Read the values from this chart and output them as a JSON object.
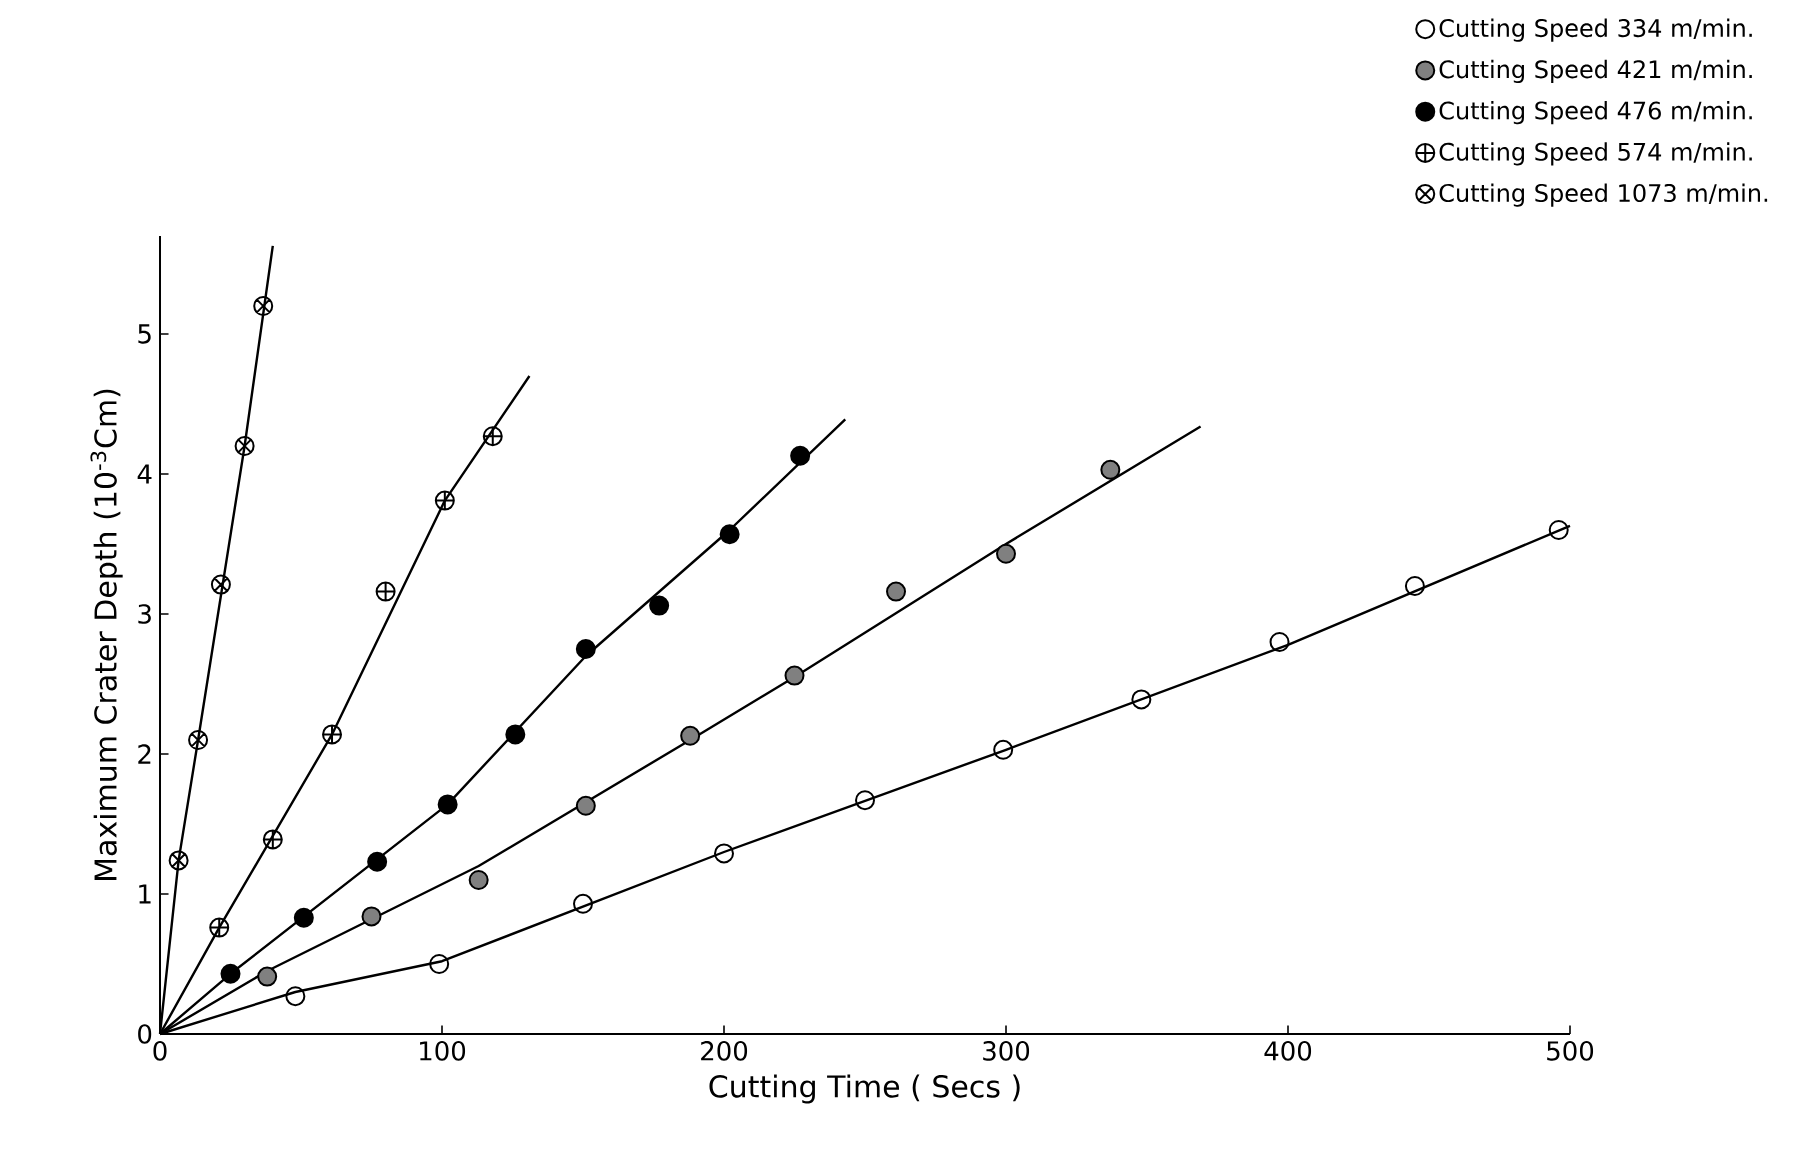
{
  "chart_data": {
    "type": "scatter",
    "xlabel": "Cutting Time ( Secs )",
    "ylabel": "Maximum Crater Depth (10$^{-3}$Cm)",
    "xlim": [
      0,
      500
    ],
    "ylim": [
      0,
      5.7
    ],
    "xticks": [
      0,
      100,
      200,
      300,
      400,
      500
    ],
    "yticks": [
      0,
      1,
      2,
      3,
      4,
      5
    ],
    "legend": "top right",
    "series": [
      {
        "name": "Cutting Speed 334 m/min.",
        "marker": "circle",
        "color": "#000000",
        "x": [
          48,
          99,
          150,
          200,
          250,
          299,
          348,
          397,
          445,
          496
        ],
        "values": [
          0.27,
          0.5,
          0.93,
          1.29,
          1.67,
          2.03,
          2.39,
          2.8,
          3.2,
          3.6
        ]
      },
      {
        "name": "Cutting Speed 421 m/min.",
        "marker": "circle",
        "color": "#000000",
        "x": [
          38,
          75,
          113,
          151,
          188,
          225,
          261,
          300,
          337
        ],
        "values": [
          0.41,
          0.84,
          1.1,
          1.63,
          2.13,
          2.56,
          3.16,
          3.43,
          4.03
        ]
      },
      {
        "name": "Cutting Speed 476 m/min.",
        "marker": "circle",
        "color": "#000000",
        "x": [
          25,
          51,
          77,
          102,
          126,
          151,
          177,
          202,
          227
        ],
        "values": [
          0.43,
          0.83,
          1.23,
          1.64,
          2.14,
          2.75,
          3.06,
          3.57,
          4.13
        ]
      },
      {
        "name": "Cutting Speed 574 m/min.",
        "marker": "cross",
        "color": "#000000",
        "x": [
          21,
          40,
          61,
          80,
          101,
          118
        ],
        "values": [
          0.76,
          1.39,
          2.14,
          3.16,
          3.81,
          4.27
        ]
      },
      {
        "name": "Cutting Speed 1073 m/min.",
        "marker": "cross",
        "color": "#000000",
        "x": [
          6.6,
          13.5,
          21.6,
          30,
          36.6
        ],
        "values": [
          1.24,
          2.1,
          3.21,
          4.2,
          5.2
        ]
      },
      {
        "type": "line",
        "color": "#000000",
        "marker": "none",
        "x": [
          0,
          48,
          100,
          200,
          300,
          400,
          500
        ],
        "values": [
          0,
          0.3,
          0.52,
          1.3,
          2.03,
          2.78,
          3.63
        ]
      },
      {
        "type": "line",
        "color": "#000000",
        "marker": "none",
        "x": [
          0,
          38,
          113,
          188,
          225,
          300,
          369
        ],
        "values": [
          0,
          0.45,
          1.2,
          2.1,
          2.55,
          3.5,
          4.34
        ]
      },
      {
        "type": "line",
        "color": "#000000",
        "marker": "none",
        "x": [
          0,
          25,
          102,
          151,
          202,
          243
        ],
        "values": [
          0,
          0.43,
          1.64,
          2.7,
          3.6,
          4.39
        ]
      },
      {
        "type": "line",
        "color": "#000000",
        "marker": "none",
        "x": [
          0,
          21,
          61,
          101,
          131
        ],
        "values": [
          0,
          0.76,
          2.14,
          3.81,
          4.7
        ]
      },
      {
        "type": "line",
        "color": "#000000",
        "marker": "none",
        "x": [
          0,
          6.6,
          13.5,
          30,
          40
        ],
        "values": [
          0,
          1.24,
          2.1,
          4.2,
          5.63
        ]
      }
    ]
  }
}
